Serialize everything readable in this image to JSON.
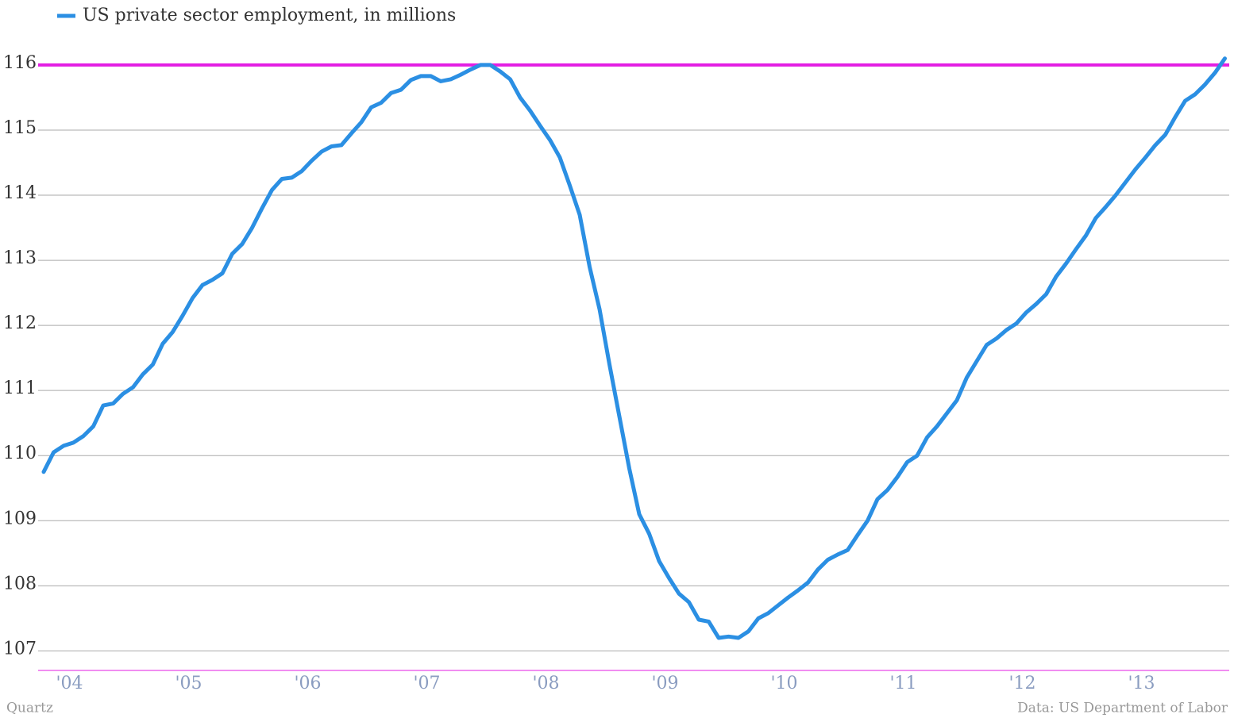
{
  "chart_data": {
    "type": "line",
    "legend": "top-left",
    "grid": true,
    "series": [
      {
        "name": "US private sector employment, in millions",
        "color": "#2b8fe3",
        "values": [
          109.75,
          110.05,
          110.15,
          110.2,
          110.3,
          110.45,
          110.77,
          110.8,
          110.95,
          111.05,
          111.25,
          111.4,
          111.72,
          111.9,
          112.15,
          112.42,
          112.62,
          112.7,
          112.8,
          113.1,
          113.25,
          113.5,
          113.8,
          114.08,
          114.25,
          114.27,
          114.37,
          114.53,
          114.67,
          114.75,
          114.77,
          114.95,
          115.12,
          115.35,
          115.42,
          115.57,
          115.62,
          115.77,
          115.83,
          115.83,
          115.75,
          115.78,
          115.85,
          115.93,
          116.0,
          116.0,
          115.9,
          115.78,
          115.5,
          115.3,
          115.07,
          114.85,
          114.58,
          114.15,
          113.7,
          112.9,
          112.25,
          111.4,
          110.6,
          109.8,
          109.1,
          108.8,
          108.38,
          108.12,
          107.88,
          107.75,
          107.48,
          107.45,
          107.2,
          107.22,
          107.2,
          107.3,
          107.5,
          107.58,
          107.7,
          107.82,
          107.93,
          108.05,
          108.25,
          108.4,
          108.48,
          108.55,
          108.78,
          109.0,
          109.33,
          109.47,
          109.67,
          109.9,
          110.0,
          110.28,
          110.45,
          110.65,
          110.85,
          111.2,
          111.45,
          111.7,
          111.8,
          111.93,
          112.03,
          112.2,
          112.33,
          112.48,
          112.75,
          112.95,
          113.17,
          113.38,
          113.65,
          113.82,
          114.0,
          114.2,
          114.4,
          114.58,
          114.77,
          114.93,
          115.2,
          115.45,
          115.55,
          115.7,
          115.88,
          116.1
        ]
      }
    ],
    "categories": [
      null,
      null,
      null,
      "'04",
      null,
      null,
      null,
      null,
      null,
      null,
      null,
      null,
      null,
      null,
      null,
      "'05",
      null,
      null,
      null,
      null,
      null,
      null,
      null,
      null,
      null,
      null,
      null,
      "'06",
      null,
      null,
      null,
      null,
      null,
      null,
      null,
      null,
      null,
      null,
      null,
      "'07",
      null,
      null,
      null,
      null,
      null,
      null,
      null,
      null,
      null,
      null,
      null,
      "'08",
      null,
      null,
      null,
      null,
      null,
      null,
      null,
      null,
      null,
      null,
      null,
      "'09",
      null,
      null,
      null,
      null,
      null,
      null,
      null,
      null,
      null,
      null,
      null,
      "'10",
      null,
      null,
      null,
      null,
      null,
      null,
      null,
      null,
      null,
      null,
      null,
      "'11",
      null,
      null,
      null,
      null,
      null,
      null,
      null,
      null,
      null,
      null,
      null,
      "'12",
      null,
      null,
      null,
      null,
      null,
      null,
      null,
      null,
      null,
      null,
      null,
      "'13",
      null,
      null,
      null,
      null,
      null,
      null,
      null,
      null
    ],
    "ylim": [
      106.7,
      116.45
    ],
    "yticks": [
      107,
      108,
      109,
      110,
      111,
      112,
      113,
      114,
      115,
      116
    ],
    "reference_line": {
      "value": 116,
      "color": "#e31ee3"
    },
    "axis_color": "#e31ee3",
    "source_left": "Quartz",
    "source_right": "Data: US Department of Labor"
  }
}
